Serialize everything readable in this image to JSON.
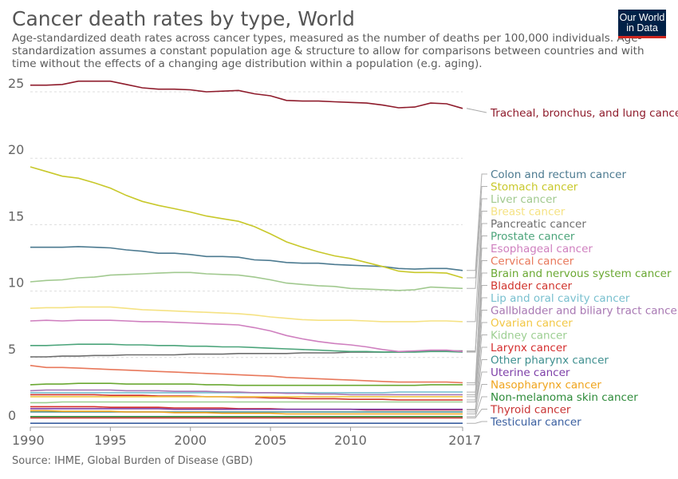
{
  "header": {
    "title": "Cancer death rates by type, World",
    "subtitle": "Age-standardized death rates across cancer types, measured as the number of deaths per 100,000 individuals. Age-standardization assumes a constant population age & structure to allow for comparisons between countries and with time without the effects of a changing age distribution within a population (e.g. aging).",
    "logo_line1": "Our World",
    "logo_line2": "in Data"
  },
  "footer": {
    "source": "Source: IHME, Global Burden of Disease (GBD)"
  },
  "colors": {
    "brand_bg": "#002147",
    "brand_accent": "#ce261e"
  },
  "chart_data": {
    "type": "line",
    "xlim": [
      1990,
      2017
    ],
    "ylim": [
      0,
      25
    ],
    "xticks": [
      1990,
      1995,
      2000,
      2005,
      2010,
      2017
    ],
    "yticks": [
      0,
      5,
      10,
      15,
      20,
      25
    ],
    "grid": true,
    "x": [
      1990,
      1991,
      1992,
      1993,
      1994,
      1995,
      1996,
      1997,
      1998,
      1999,
      2000,
      2001,
      2002,
      2003,
      2004,
      2005,
      2006,
      2007,
      2008,
      2009,
      2010,
      2011,
      2012,
      2013,
      2014,
      2015,
      2016,
      2017
    ],
    "series": [
      {
        "name": "Tracheal, bronchus, and lung cancer",
        "color": "#8e1b2b",
        "values": [
          25.5,
          25.5,
          25.55,
          25.8,
          25.8,
          25.8,
          25.55,
          25.3,
          25.2,
          25.2,
          25.15,
          25.0,
          25.05,
          25.1,
          24.85,
          24.7,
          24.35,
          24.3,
          24.3,
          24.25,
          24.2,
          24.15,
          24.0,
          23.8,
          23.85,
          24.15,
          24.1,
          23.75
        ]
      },
      {
        "name": "Colon and rectum cancer",
        "color": "#4c7a90",
        "values": [
          13.3,
          13.3,
          13.3,
          13.35,
          13.3,
          13.25,
          13.1,
          13.0,
          12.85,
          12.85,
          12.75,
          12.6,
          12.6,
          12.55,
          12.35,
          12.3,
          12.15,
          12.1,
          12.1,
          12.0,
          11.95,
          11.9,
          11.85,
          11.7,
          11.65,
          11.7,
          11.7,
          11.55
        ]
      },
      {
        "name": "Stomach cancer",
        "color": "#c8c82a",
        "values": [
          19.35,
          19.0,
          18.65,
          18.5,
          18.15,
          17.75,
          17.2,
          16.75,
          16.45,
          16.2,
          15.95,
          15.65,
          15.45,
          15.25,
          14.85,
          14.3,
          13.7,
          13.3,
          12.95,
          12.65,
          12.45,
          12.15,
          11.85,
          11.5,
          11.4,
          11.4,
          11.35,
          11.0
        ]
      },
      {
        "name": "Liver cancer",
        "color": "#a1c98f",
        "values": [
          10.7,
          10.8,
          10.85,
          11.0,
          11.05,
          11.2,
          11.25,
          11.3,
          11.35,
          11.4,
          11.4,
          11.3,
          11.25,
          11.2,
          11.05,
          10.85,
          10.6,
          10.5,
          10.4,
          10.35,
          10.2,
          10.15,
          10.1,
          10.05,
          10.1,
          10.3,
          10.25,
          10.2
        ]
      },
      {
        "name": "Breast cancer",
        "color": "#f5e283",
        "values": [
          8.7,
          8.75,
          8.75,
          8.8,
          8.8,
          8.8,
          8.7,
          8.6,
          8.55,
          8.5,
          8.45,
          8.4,
          8.35,
          8.3,
          8.2,
          8.05,
          7.95,
          7.85,
          7.8,
          7.8,
          7.8,
          7.75,
          7.7,
          7.7,
          7.7,
          7.75,
          7.75,
          7.7
        ]
      },
      {
        "name": "Pancreatic cancer",
        "color": "#6d6d6d",
        "values": [
          5.05,
          5.05,
          5.1,
          5.1,
          5.15,
          5.15,
          5.2,
          5.2,
          5.2,
          5.2,
          5.25,
          5.25,
          5.25,
          5.3,
          5.3,
          5.3,
          5.3,
          5.35,
          5.35,
          5.35,
          5.4,
          5.4,
          5.4,
          5.4,
          5.45,
          5.5,
          5.5,
          5.5
        ]
      },
      {
        "name": "Prostate cancer",
        "color": "#4ba47a",
        "values": [
          5.9,
          5.9,
          5.95,
          6.0,
          6.0,
          6.0,
          5.95,
          5.95,
          5.9,
          5.9,
          5.85,
          5.85,
          5.8,
          5.8,
          5.75,
          5.7,
          5.65,
          5.6,
          5.55,
          5.5,
          5.45,
          5.45,
          5.4,
          5.4,
          5.4,
          5.45,
          5.45,
          5.4
        ]
      },
      {
        "name": "Esophageal cancer",
        "color": "#cf7fbf",
        "values": [
          7.75,
          7.8,
          7.75,
          7.8,
          7.8,
          7.8,
          7.75,
          7.7,
          7.7,
          7.65,
          7.6,
          7.55,
          7.5,
          7.45,
          7.25,
          7.0,
          6.65,
          6.4,
          6.2,
          6.05,
          5.95,
          5.8,
          5.6,
          5.45,
          5.5,
          5.55,
          5.55,
          5.45
        ]
      },
      {
        "name": "Cervical cancer",
        "color": "#e8785b",
        "values": [
          4.4,
          4.25,
          4.25,
          4.2,
          4.15,
          4.1,
          4.05,
          4.0,
          3.95,
          3.9,
          3.85,
          3.8,
          3.75,
          3.7,
          3.65,
          3.6,
          3.5,
          3.45,
          3.4,
          3.35,
          3.3,
          3.25,
          3.2,
          3.15,
          3.15,
          3.15,
          3.15,
          3.1
        ]
      },
      {
        "name": "Brain and nervous system cancer",
        "color": "#6aa832",
        "values": [
          2.95,
          3.0,
          3.0,
          3.05,
          3.05,
          3.05,
          3.0,
          3.0,
          3.0,
          3.0,
          3.0,
          2.95,
          2.95,
          2.9,
          2.9,
          2.9,
          2.9,
          2.9,
          2.9,
          2.9,
          2.9,
          2.9,
          2.9,
          2.9,
          2.9,
          2.95,
          2.95,
          2.95
        ]
      },
      {
        "name": "Bladder cancer",
        "color": "#d0342c",
        "values": [
          2.2,
          2.2,
          2.2,
          2.2,
          2.2,
          2.15,
          2.15,
          2.15,
          2.1,
          2.1,
          2.1,
          2.05,
          2.05,
          2.0,
          2.0,
          1.95,
          1.95,
          1.9,
          1.9,
          1.9,
          1.85,
          1.85,
          1.85,
          1.8,
          1.8,
          1.8,
          1.8,
          1.8
        ]
      },
      {
        "name": "Lip and oral cavity cancer",
        "color": "#79c0cf",
        "values": [
          2.35,
          2.35,
          2.35,
          2.35,
          2.35,
          2.35,
          2.35,
          2.35,
          2.35,
          2.35,
          2.35,
          2.35,
          2.35,
          2.35,
          2.35,
          2.35,
          2.35,
          2.35,
          2.35,
          2.35,
          2.35,
          2.35,
          2.35,
          2.4,
          2.4,
          2.4,
          2.4,
          2.4
        ]
      },
      {
        "name": "Gallbladder and biliary tract cancer",
        "color": "#a878b3",
        "values": [
          2.5,
          2.55,
          2.55,
          2.55,
          2.55,
          2.55,
          2.5,
          2.5,
          2.5,
          2.45,
          2.45,
          2.45,
          2.4,
          2.4,
          2.35,
          2.35,
          2.3,
          2.3,
          2.25,
          2.25,
          2.2,
          2.2,
          2.2,
          2.2,
          2.2,
          2.2,
          2.2,
          2.2
        ]
      },
      {
        "name": "Ovarian cancer",
        "color": "#f2c744",
        "values": [
          2.05,
          2.05,
          2.05,
          2.05,
          2.05,
          2.05,
          2.05,
          2.05,
          2.05,
          2.05,
          2.05,
          2.05,
          2.05,
          2.05,
          2.05,
          2.05,
          2.05,
          2.05,
          2.05,
          2.05,
          2.05,
          2.05,
          2.05,
          2.05,
          2.05,
          2.05,
          2.05,
          2.05
        ]
      },
      {
        "name": "Kidney cancer",
        "color": "#9dcf92",
        "values": [
          1.6,
          1.6,
          1.65,
          1.65,
          1.65,
          1.65,
          1.65,
          1.65,
          1.65,
          1.65,
          1.65,
          1.65,
          1.65,
          1.65,
          1.65,
          1.65,
          1.65,
          1.65,
          1.65,
          1.65,
          1.65,
          1.65,
          1.65,
          1.65,
          1.65,
          1.65,
          1.65,
          1.65
        ]
      },
      {
        "name": "Larynx cancer",
        "color": "#d42d2d",
        "values": [
          1.3,
          1.3,
          1.3,
          1.3,
          1.3,
          1.25,
          1.25,
          1.25,
          1.25,
          1.2,
          1.2,
          1.2,
          1.2,
          1.15,
          1.15,
          1.15,
          1.1,
          1.1,
          1.1,
          1.1,
          1.1,
          1.05,
          1.05,
          1.05,
          1.05,
          1.05,
          1.05,
          1.05
        ]
      },
      {
        "name": "Other pharynx cancer",
        "color": "#3e8f8f",
        "values": [
          0.9,
          0.9,
          0.9,
          0.9,
          0.9,
          0.9,
          0.9,
          0.9,
          0.9,
          0.9,
          0.9,
          0.9,
          0.9,
          0.9,
          0.9,
          0.9,
          0.9,
          0.9,
          0.9,
          0.9,
          0.9,
          0.9,
          0.9,
          0.9,
          0.9,
          0.9,
          0.9,
          0.9
        ]
      },
      {
        "name": "Uterine cancer",
        "color": "#7d3fa8",
        "values": [
          1.15,
          1.15,
          1.15,
          1.15,
          1.15,
          1.15,
          1.15,
          1.15,
          1.15,
          1.1,
          1.1,
          1.1,
          1.1,
          1.1,
          1.1,
          1.1,
          1.1,
          1.1,
          1.1,
          1.1,
          1.1,
          1.1,
          1.1,
          1.1,
          1.1,
          1.1,
          1.1,
          1.1
        ]
      },
      {
        "name": "Nasopharynx cancer",
        "color": "#f0a41c",
        "values": [
          1.0,
          1.0,
          0.95,
          0.95,
          0.95,
          0.95,
          0.9,
          0.9,
          0.9,
          0.85,
          0.85,
          0.85,
          0.8,
          0.8,
          0.8,
          0.8,
          0.75,
          0.75,
          0.75,
          0.75,
          0.75,
          0.75,
          0.75,
          0.75,
          0.75,
          0.75,
          0.75,
          0.75
        ]
      },
      {
        "name": "Non-melanoma skin cancer",
        "color": "#2e8b3a",
        "values": [
          0.55,
          0.55,
          0.55,
          0.55,
          0.55,
          0.55,
          0.55,
          0.55,
          0.55,
          0.55,
          0.55,
          0.55,
          0.55,
          0.55,
          0.55,
          0.55,
          0.55,
          0.55,
          0.55,
          0.55,
          0.55,
          0.55,
          0.55,
          0.55,
          0.55,
          0.55,
          0.55,
          0.55
        ]
      },
      {
        "name": "Thyroid cancer",
        "color": "#c93333",
        "values": [
          0.45,
          0.45,
          0.45,
          0.45,
          0.45,
          0.45,
          0.45,
          0.45,
          0.45,
          0.45,
          0.45,
          0.45,
          0.45,
          0.45,
          0.45,
          0.45,
          0.45,
          0.45,
          0.45,
          0.45,
          0.45,
          0.45,
          0.45,
          0.45,
          0.45,
          0.45,
          0.45,
          0.45
        ]
      },
      {
        "name": "Testicular cancer",
        "color": "#3a5fa0",
        "values": [
          0.05,
          0.05,
          0.05,
          0.05,
          0.05,
          0.05,
          0.05,
          0.05,
          0.05,
          0.05,
          0.05,
          0.05,
          0.05,
          0.05,
          0.05,
          0.05,
          0.05,
          0.05,
          0.05,
          0.05,
          0.05,
          0.05,
          0.05,
          0.05,
          0.05,
          0.05,
          0.05,
          0.05
        ]
      }
    ]
  }
}
